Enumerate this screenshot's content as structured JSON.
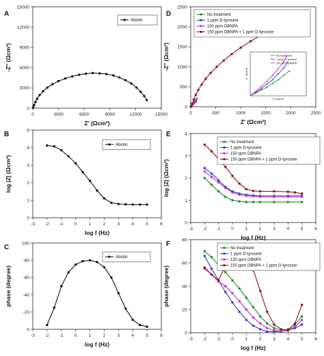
{
  "colors": {
    "black": "#111111",
    "green": "#1e8a2e",
    "blue": "#2b3fbf",
    "magenta": "#c02fd6",
    "darkred": "#8b0f16"
  },
  "chart_data": [
    {
      "panel_label": "A",
      "type": "line",
      "xlabel": "Z' (Ωcm²)",
      "ylabel": "-Z'' (Ωcm²)",
      "xlim": [
        0,
        15000
      ],
      "ylim": [
        0,
        15000
      ],
      "x_ticks": [
        "0",
        "3000",
        "6000",
        "9000",
        "12000",
        "15000"
      ],
      "y_ticks": [
        "0",
        "3000",
        "6000",
        "9000",
        "12000",
        "15000"
      ],
      "legend": [
        "Abiotic"
      ],
      "legend_position": "top-right",
      "series": [
        {
          "name": "Abiotic",
          "color": "black",
          "marker": "circle",
          "x": [
            50,
            150,
            300,
            500,
            800,
            1200,
            1700,
            2300,
            3000,
            3800,
            4600,
            5400,
            6200,
            7000,
            7800,
            8600,
            9400,
            10100,
            10800,
            11500,
            12100,
            12600,
            13000,
            13300
          ],
          "y": [
            80,
            450,
            900,
            1400,
            1950,
            2500,
            3050,
            3550,
            4000,
            4400,
            4700,
            4950,
            5100,
            5200,
            5150,
            5050,
            4850,
            4550,
            4150,
            3650,
            3050,
            2400,
            1800,
            1200
          ]
        }
      ]
    },
    {
      "panel_label": "B",
      "type": "line",
      "xlabel": "log f (Hz)",
      "ylabel": "log |Z| (Ωcm²)",
      "xlim": [
        -3,
        6
      ],
      "ylim": [
        0,
        5
      ],
      "x_ticks": [
        "-3",
        "-2",
        "-1",
        "0",
        "1",
        "2",
        "3",
        "4",
        "5",
        "6"
      ],
      "y_ticks": [
        "0",
        "1",
        "2",
        "3",
        "4",
        "5"
      ],
      "legend": [
        "Abiotic"
      ],
      "legend_position": "top-right",
      "series": [
        {
          "name": "Abiotic",
          "color": "black",
          "marker": "circle",
          "x": [
            -2,
            -1.5,
            -1,
            -0.5,
            0,
            0.5,
            1,
            1.5,
            2,
            2.5,
            3,
            3.5,
            4,
            4.5,
            5
          ],
          "y": [
            4.12,
            4.07,
            3.85,
            3.5,
            3.1,
            2.6,
            2.1,
            1.55,
            1.1,
            0.85,
            0.78,
            0.76,
            0.75,
            0.75,
            0.75
          ]
        }
      ]
    },
    {
      "panel_label": "C",
      "type": "line",
      "xlabel": "log f (Hz)",
      "ylabel": "phase (degree)",
      "xlim": [
        -3,
        6
      ],
      "ylim": [
        0,
        -100
      ],
      "x_ticks": [
        "-3",
        "-2",
        "-1",
        "0",
        "1",
        "2",
        "3",
        "4",
        "5",
        "6"
      ],
      "y_ticks": [
        "0",
        "-20",
        "-40",
        "-60",
        "-80",
        "-100"
      ],
      "legend": [
        "Abiotic"
      ],
      "legend_position": "top-right",
      "series": [
        {
          "name": "Abiotic",
          "color": "black",
          "marker": "circle",
          "x": [
            -2,
            -1.5,
            -1,
            -0.5,
            0,
            0.5,
            1,
            1.5,
            2,
            2.5,
            3,
            3.5,
            4,
            4.5,
            5
          ],
          "y": [
            -5,
            -25,
            -50,
            -66,
            -75,
            -79,
            -80,
            -78,
            -72,
            -60,
            -42,
            -24,
            -11,
            -5,
            -3
          ]
        }
      ]
    },
    {
      "panel_label": "D",
      "type": "line",
      "xlabel": "Z' (Ωcm²)",
      "ylabel": "-Z'' (Ωcm²)",
      "xlim": [
        0,
        2500
      ],
      "ylim": [
        0,
        2500
      ],
      "x_ticks": [
        "0",
        "500",
        "1000",
        "1500",
        "2000",
        "2500"
      ],
      "y_ticks": [
        "0",
        "500",
        "1000",
        "1500",
        "2000",
        "2500"
      ],
      "legend": [
        "No treatment",
        "1 ppm D-tyrosine",
        "150 ppm DBNPA",
        "150 ppm DBNPA + 1 ppm D-tyrosine"
      ],
      "legend_position": "top-left",
      "series": [
        {
          "name": "No treatment",
          "color": "green",
          "x": [
            5,
            20,
            40,
            60,
            80,
            100
          ],
          "y": [
            5,
            30,
            60,
            90,
            110,
            130
          ]
        },
        {
          "name": "1 ppm D-tyrosine",
          "color": "blue",
          "x": [
            5,
            25,
            50,
            75,
            100
          ],
          "y": [
            5,
            40,
            80,
            115,
            150
          ]
        },
        {
          "name": "150 ppm DBNPA",
          "color": "magenta",
          "x": [
            5,
            30,
            60,
            90,
            120
          ],
          "y": [
            5,
            50,
            100,
            150,
            200
          ]
        },
        {
          "name": "150 ppm DBNPA + 1 ppm D-tyrosine",
          "color": "darkred",
          "x": [
            10,
            30,
            60,
            100,
            150,
            220,
            300,
            400,
            520,
            660,
            820,
            1000,
            1200,
            1420,
            1650,
            1900,
            2200
          ],
          "y": [
            10,
            80,
            180,
            300,
            420,
            560,
            700,
            850,
            1000,
            1160,
            1320,
            1480,
            1640,
            1800,
            1940,
            2060,
            2150
          ]
        }
      ],
      "inset": {
        "xlabel": "Z' (Ωcm²)",
        "ylabel": "-Z'' (Ωcm²)",
        "legend": [
          "No treatment",
          "1 ppm D-tyrosine",
          "150 ppm DBNPA"
        ],
        "xlim": [
          0,
          300
        ],
        "ylim": [
          0,
          300
        ],
        "series": [
          {
            "name": "No treatment",
            "color": "green",
            "x": [
              5,
              30,
              60,
              90,
              120,
              150,
              180,
              210
            ],
            "y": [
              5,
              20,
              40,
              60,
              85,
              110,
              140,
              170
            ]
          },
          {
            "name": "1 ppm D-tyrosine",
            "color": "blue",
            "x": [
              5,
              30,
              60,
              90,
              120,
              150,
              180,
              200
            ],
            "y": [
              5,
              25,
              50,
              80,
              110,
              150,
              190,
              230
            ]
          },
          {
            "name": "150 ppm DBNPA",
            "color": "magenta",
            "x": [
              5,
              30,
              60,
              90,
              120,
              150,
              180,
              195
            ],
            "y": [
              5,
              30,
              65,
              100,
              140,
              185,
              235,
              270
            ]
          }
        ]
      }
    },
    {
      "panel_label": "E",
      "type": "line",
      "xlabel": "log f (Hz)",
      "ylabel": "log |Z| (Ωcm²)",
      "xlim": [
        -3,
        6
      ],
      "ylim": [
        0,
        4
      ],
      "x_ticks": [
        "-3",
        "-2",
        "-1",
        "0",
        "1",
        "2",
        "3",
        "4",
        "5",
        "6"
      ],
      "y_ticks": [
        "0",
        "1",
        "2",
        "3",
        "4"
      ],
      "legend": [
        "No treatment",
        "1 ppm D-tyrosine",
        "150 ppm DBNPA",
        "150 ppm DBNPA + 1 ppm D-tyrosine"
      ],
      "legend_position": "top-right",
      "series": [
        {
          "name": "No treatment",
          "color": "green",
          "x": [
            -2,
            -1.5,
            -1,
            -0.5,
            0,
            0.5,
            1,
            1.5,
            2,
            3,
            4,
            5
          ],
          "y": [
            2.0,
            1.7,
            1.4,
            1.15,
            1.0,
            0.95,
            0.92,
            0.92,
            0.92,
            0.92,
            0.92,
            0.92
          ]
        },
        {
          "name": "1 ppm D-tyrosine",
          "color": "blue",
          "x": [
            -2,
            -1.5,
            -1,
            -0.5,
            0,
            0.5,
            1,
            1.5,
            2,
            3,
            4,
            5
          ],
          "y": [
            2.45,
            2.2,
            1.9,
            1.6,
            1.4,
            1.3,
            1.25,
            1.22,
            1.2,
            1.2,
            1.2,
            1.2
          ]
        },
        {
          "name": "150 ppm DBNPA",
          "color": "magenta",
          "x": [
            -2,
            -1.5,
            -1,
            -0.5,
            0,
            0.5,
            1,
            1.5,
            2,
            3,
            4,
            5
          ],
          "y": [
            2.3,
            2.05,
            1.8,
            1.55,
            1.35,
            1.25,
            1.2,
            1.18,
            1.15,
            1.15,
            1.15,
            1.15
          ]
        },
        {
          "name": "150 ppm DBNPA + 1 ppm D-tyrosine",
          "color": "darkred",
          "x": [
            -2,
            -1.5,
            -1,
            -0.5,
            0,
            0.5,
            1,
            1.5,
            2,
            3,
            4,
            4.5,
            5
          ],
          "y": [
            3.5,
            3.2,
            2.85,
            2.5,
            2.1,
            1.75,
            1.5,
            1.42,
            1.4,
            1.4,
            1.38,
            1.35,
            1.3
          ]
        }
      ]
    },
    {
      "panel_label": "F",
      "type": "line",
      "xlabel": "log f (Hz)",
      "ylabel": "phase (degree)",
      "xlim": [
        -3,
        6
      ],
      "ylim": [
        0,
        -80
      ],
      "x_ticks": [
        "-3",
        "-2",
        "-1",
        "0",
        "1",
        "2",
        "3",
        "4",
        "5",
        "6"
      ],
      "y_ticks": [
        "0",
        "-20",
        "-40",
        "-60",
        "-80"
      ],
      "legend": [
        "No treatment",
        "1 ppm D-tyrosine",
        "150 ppm DBNPA",
        "150 ppm DBNPA + 1 ppm D-tyrosine"
      ],
      "legend_position": "top-right",
      "series": [
        {
          "name": "No treatment",
          "color": "green",
          "x": [
            -2,
            -1.5,
            -1,
            -0.5,
            0,
            0.5,
            1,
            1.5,
            2,
            2.5,
            3,
            3.5,
            4,
            4.5,
            5
          ],
          "y": [
            -70,
            -65,
            -58,
            -52,
            -45,
            -38,
            -30,
            -22,
            -14,
            -8,
            -4,
            -2,
            -3,
            -7,
            -14
          ]
        },
        {
          "name": "1 ppm D-tyrosine",
          "color": "blue",
          "x": [
            -2,
            -1.5,
            -1,
            -0.5,
            0,
            0.5,
            1,
            1.5,
            2,
            2.5,
            3,
            3.5,
            4,
            4.5,
            5
          ],
          "y": [
            -66,
            -55,
            -45,
            -35,
            -26,
            -18,
            -11,
            -6,
            -3,
            -1,
            -1,
            -1,
            -2,
            -4,
            -7
          ]
        },
        {
          "name": "150 ppm DBNPA",
          "color": "magenta",
          "x": [
            -2,
            -1.5,
            -1,
            -0.5,
            0,
            0.5,
            1,
            1.5,
            2,
            2.5,
            3,
            3.5,
            4,
            4.5,
            5
          ],
          "y": [
            -55,
            -50,
            -44,
            -40,
            -34,
            -27,
            -20,
            -13,
            -8,
            -4,
            -2,
            -1,
            -2,
            -5,
            -11
          ]
        },
        {
          "name": "150 ppm DBNPA + 1 ppm D-tyrosine",
          "color": "darkred",
          "x": [
            -2,
            -1.5,
            -1,
            -0.5,
            0,
            0.5,
            1,
            1.5,
            2,
            2.5,
            3,
            3.5,
            4,
            4.5,
            5
          ],
          "y": [
            -56,
            -50,
            -45,
            -58,
            -67,
            -69,
            -66,
            -54,
            -36,
            -18,
            -7,
            -3,
            -2,
            -8,
            -24
          ]
        }
      ]
    }
  ]
}
